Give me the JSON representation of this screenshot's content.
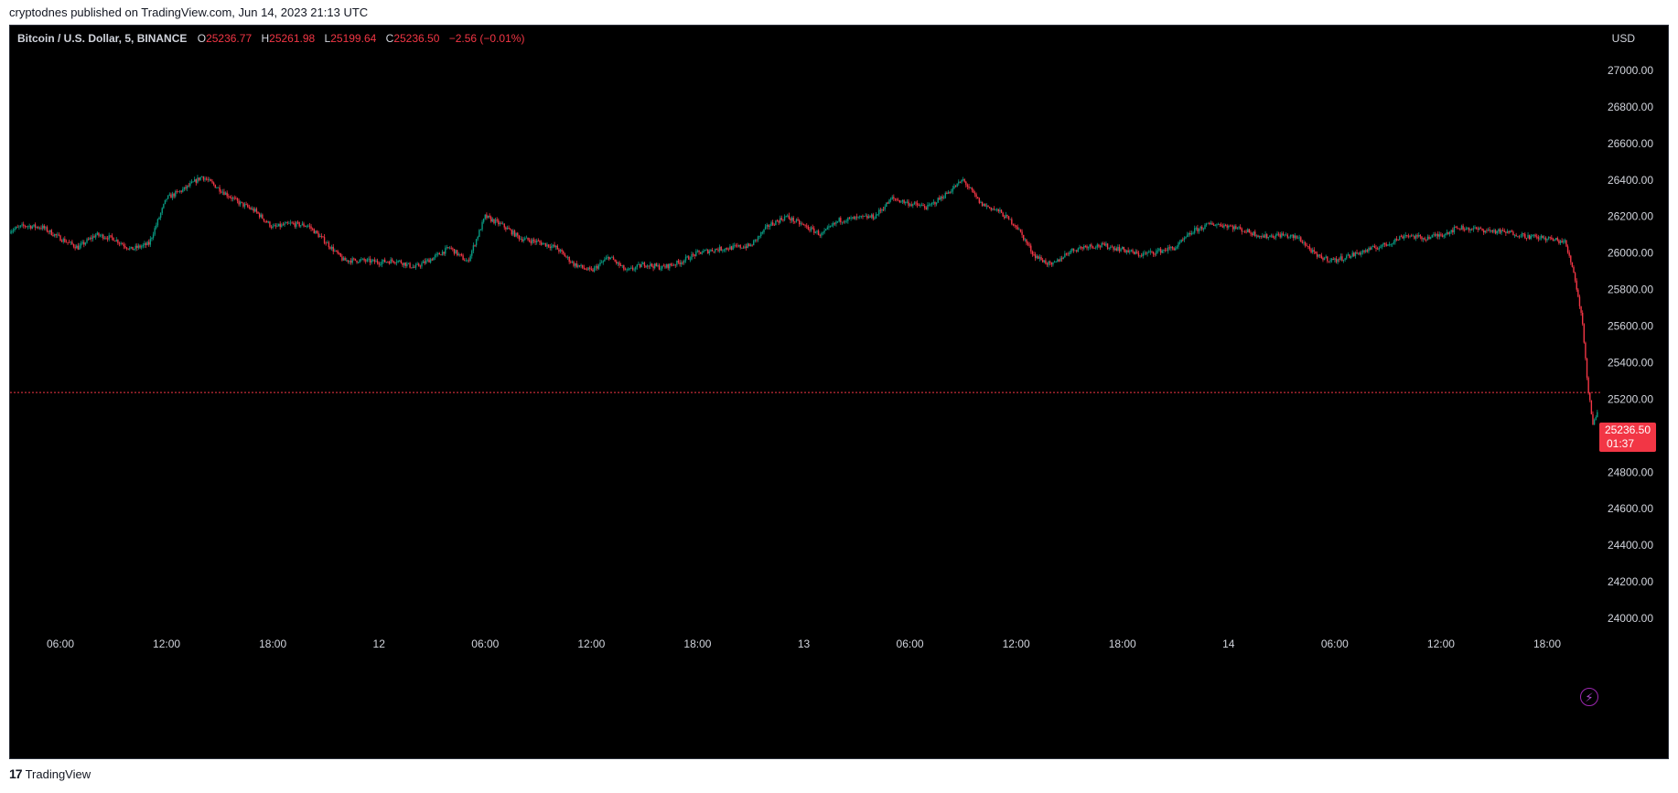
{
  "header": {
    "published_line": "cryptodnes published on TradingView.com, Jun 14, 2023 21:13 UTC"
  },
  "legend": {
    "symbol": "Bitcoin / U.S. Dollar, 5, BINANCE",
    "open_label": "O",
    "open": "25236.77",
    "high_label": "H",
    "high": "25261.98",
    "low_label": "L",
    "low": "25199.64",
    "close_label": "C",
    "close": "25236.50",
    "change": "−2.56 (−0.01%)"
  },
  "axis": {
    "currency": "USD"
  },
  "price_tag": {
    "price": "25236.50",
    "countdown": "01:37"
  },
  "footer": {
    "brand": "TradingView",
    "logo_mark": "17"
  },
  "colors": {
    "background": "#000000",
    "up": "#089981",
    "down": "#f23645",
    "text": "#d1d4dc",
    "last_price_line": "#f23645"
  },
  "icons": {
    "alert": "lightning-icon",
    "logo": "tradingview-logo-icon"
  },
  "chart_data": {
    "type": "candlestick",
    "title": "Bitcoin / U.S. Dollar, 5, BINANCE",
    "y_unit": "USD",
    "ylim": [
      23900,
      27150
    ],
    "y_ticks": [
      "27000.00",
      "26800.00",
      "26600.00",
      "26400.00",
      "26200.00",
      "26000.00",
      "25800.00",
      "25600.00",
      "25400.00",
      "25200.00",
      "25000.00",
      "24800.00",
      "24600.00",
      "24400.00",
      "24200.00",
      "24000.00"
    ],
    "x_ticks": [
      "06:00",
      "12:00",
      "18:00",
      "12",
      "06:00",
      "12:00",
      "18:00",
      "13",
      "06:00",
      "12:00",
      "18:00",
      "14",
      "06:00",
      "12:00",
      "18:00"
    ],
    "x_tick_hours": [
      6,
      12,
      18,
      24,
      30,
      36,
      42,
      48,
      54,
      60,
      66,
      72,
      78,
      84,
      90
    ],
    "last_price": 25236.5,
    "grid": false,
    "price_path": [
      [
        0,
        26110
      ],
      [
        1,
        26050
      ],
      [
        2,
        26140
      ],
      [
        3,
        26120
      ],
      [
        4,
        26150
      ],
      [
        5,
        26140
      ],
      [
        6,
        26080
      ],
      [
        7,
        26030
      ],
      [
        8,
        26100
      ],
      [
        9,
        26080
      ],
      [
        10,
        26020
      ],
      [
        11,
        26050
      ],
      [
        12,
        26300
      ],
      [
        13,
        26350
      ],
      [
        14,
        26420
      ],
      [
        15,
        26350
      ],
      [
        16,
        26280
      ],
      [
        17,
        26230
      ],
      [
        18,
        26140
      ],
      [
        19,
        26160
      ],
      [
        20,
        26150
      ],
      [
        21,
        26060
      ],
      [
        22,
        25960
      ],
      [
        23,
        25960
      ],
      [
        24,
        25950
      ],
      [
        25,
        25960
      ],
      [
        26,
        25920
      ],
      [
        27,
        25970
      ],
      [
        28,
        26030
      ],
      [
        29,
        25950
      ],
      [
        30,
        26200
      ],
      [
        31,
        26150
      ],
      [
        32,
        26080
      ],
      [
        33,
        26060
      ],
      [
        34,
        26030
      ],
      [
        35,
        25940
      ],
      [
        36,
        25900
      ],
      [
        37,
        25980
      ],
      [
        38,
        25900
      ],
      [
        39,
        25940
      ],
      [
        40,
        25920
      ],
      [
        41,
        25950
      ],
      [
        42,
        26000
      ],
      [
        43,
        26020
      ],
      [
        44,
        26030
      ],
      [
        45,
        26040
      ],
      [
        46,
        26150
      ],
      [
        47,
        26200
      ],
      [
        48,
        26150
      ],
      [
        49,
        26100
      ],
      [
        50,
        26180
      ],
      [
        51,
        26190
      ],
      [
        52,
        26200
      ],
      [
        53,
        26300
      ],
      [
        54,
        26270
      ],
      [
        55,
        26250
      ],
      [
        56,
        26320
      ],
      [
        57,
        26400
      ],
      [
        58,
        26270
      ],
      [
        59,
        26230
      ],
      [
        60,
        26150
      ],
      [
        61,
        25990
      ],
      [
        62,
        25930
      ],
      [
        63,
        26010
      ],
      [
        64,
        26040
      ],
      [
        65,
        26040
      ],
      [
        66,
        26020
      ],
      [
        67,
        25990
      ],
      [
        68,
        26010
      ],
      [
        69,
        26030
      ],
      [
        70,
        26120
      ],
      [
        71,
        26160
      ],
      [
        72,
        26150
      ],
      [
        73,
        26120
      ],
      [
        74,
        26090
      ],
      [
        75,
        26100
      ],
      [
        76,
        26080
      ],
      [
        77,
        25980
      ],
      [
        78,
        25960
      ],
      [
        79,
        25990
      ],
      [
        80,
        26020
      ],
      [
        81,
        26050
      ],
      [
        82,
        26100
      ],
      [
        83,
        26080
      ],
      [
        84,
        26100
      ],
      [
        85,
        26140
      ],
      [
        86,
        26130
      ],
      [
        87,
        26120
      ],
      [
        88,
        26110
      ],
      [
        89,
        26090
      ],
      [
        90,
        26080
      ],
      [
        91,
        26060
      ],
      [
        91.5,
        25900
      ],
      [
        92,
        25620
      ],
      [
        92.3,
        25260
      ],
      [
        92.6,
        25060
      ],
      [
        92.9,
        25150
      ],
      [
        93,
        25236.5
      ]
    ]
  }
}
